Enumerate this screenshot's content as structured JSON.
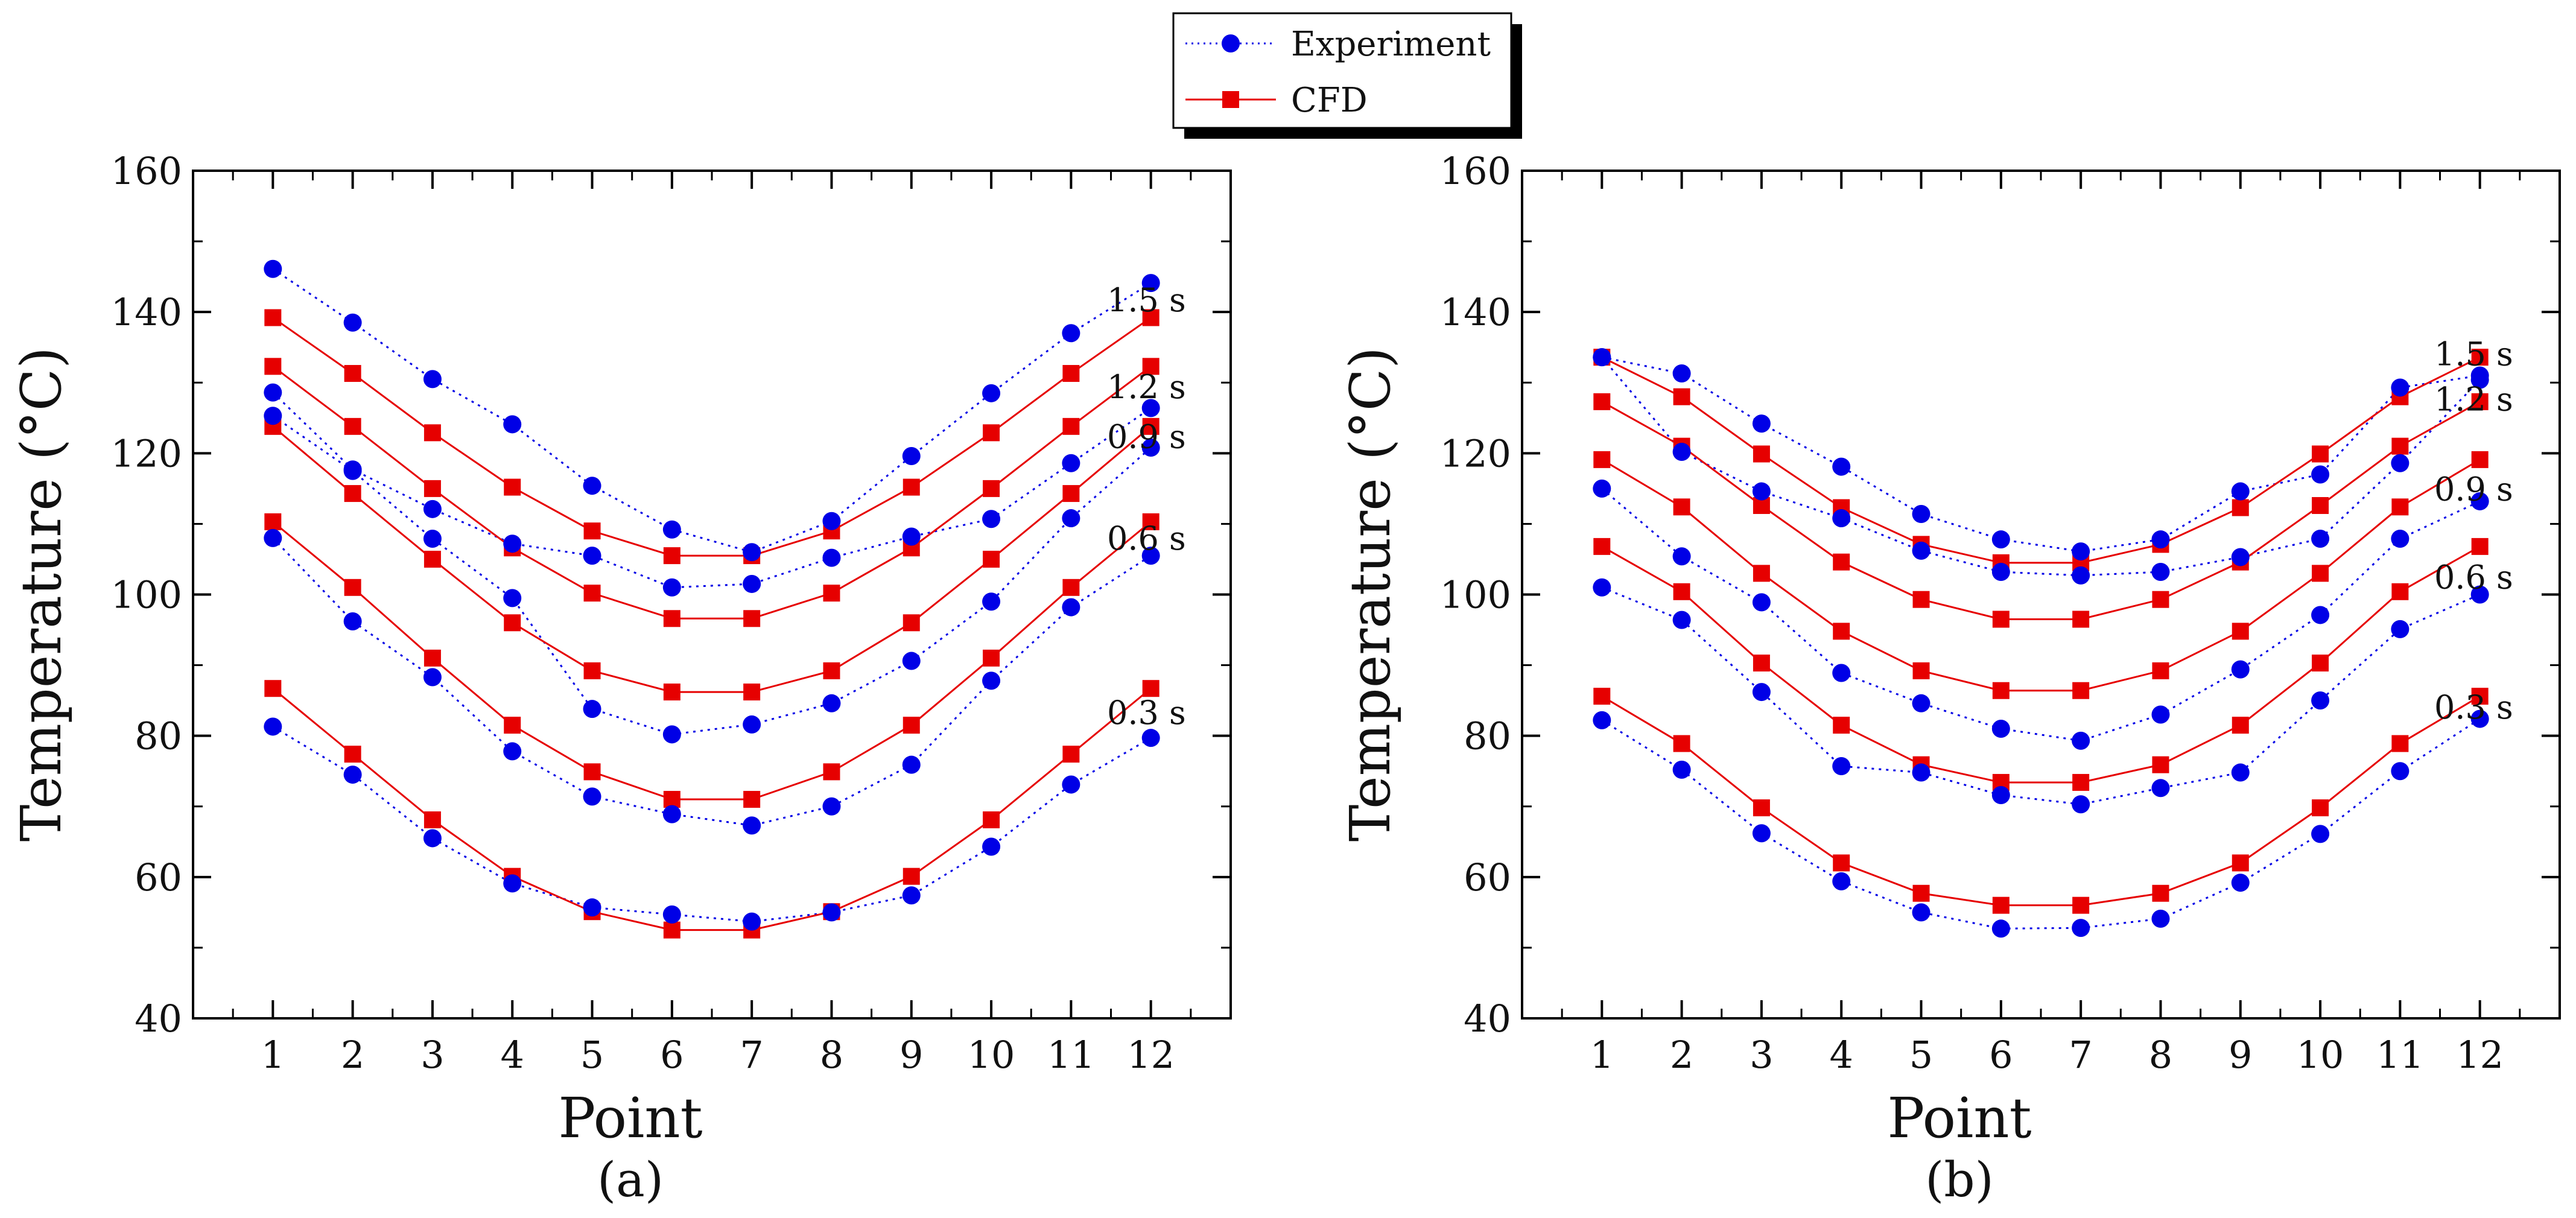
{
  "legend": {
    "items": [
      {
        "label": "Experiment",
        "color": "#0000e6",
        "marker": "circle",
        "line": "dotted"
      },
      {
        "label": "CFD",
        "color": "#e60000",
        "marker": "square",
        "line": "solid"
      }
    ]
  },
  "chart_data": [
    {
      "panel_label": "(a)",
      "type": "line",
      "xlabel": "Point",
      "ylabel": "Temperature (°C)",
      "xlim": [
        0,
        13
      ],
      "ylim": [
        40,
        160
      ],
      "x": [
        1,
        2,
        3,
        4,
        5,
        6,
        7,
        8,
        9,
        10,
        11,
        12
      ],
      "xticks": [
        "1",
        "2",
        "3",
        "4",
        "5",
        "6",
        "7",
        "8",
        "9",
        "10",
        "11",
        "12"
      ],
      "yticks": [
        "40",
        "60",
        "80",
        "100",
        "120",
        "140",
        "160"
      ],
      "groups": [
        {
          "label": "1.5 s",
          "experiment": [
            146.1,
            138.5,
            130.5,
            124.1,
            115.4,
            109.2,
            106.0,
            110.4,
            119.6,
            128.5,
            137.0,
            144.1
          ],
          "cfd": [
            139.2,
            131.3,
            122.9,
            115.2,
            109.0,
            105.5,
            105.5,
            109.0,
            115.2,
            122.9,
            131.3,
            139.2
          ]
        },
        {
          "label": "1.2 s",
          "experiment": [
            128.6,
            117.7,
            112.1,
            107.2,
            105.5,
            101.0,
            101.5,
            105.2,
            108.2,
            110.7,
            118.6,
            126.4
          ],
          "cfd": [
            132.3,
            123.8,
            115.0,
            106.6,
            100.2,
            96.6,
            96.6,
            100.2,
            106.6,
            115.0,
            123.8,
            132.3
          ]
        },
        {
          "label": "0.9 s",
          "experiment": [
            125.3,
            117.5,
            107.9,
            99.5,
            83.8,
            80.2,
            81.6,
            84.6,
            90.6,
            99.0,
            110.8,
            120.8
          ],
          "cfd": [
            123.8,
            114.3,
            105.0,
            96.0,
            89.2,
            86.2,
            86.2,
            89.2,
            96.0,
            105.0,
            114.3,
            123.8
          ]
        },
        {
          "label": "0.6 s",
          "experiment": [
            108.0,
            96.2,
            88.3,
            77.8,
            71.4,
            68.9,
            67.3,
            70.0,
            75.9,
            87.8,
            98.2,
            105.5
          ],
          "cfd": [
            110.3,
            101.0,
            91.0,
            81.5,
            74.9,
            71.0,
            71.0,
            74.9,
            81.5,
            91.0,
            101.0,
            110.3
          ]
        },
        {
          "label": "0.3 s",
          "experiment": [
            81.3,
            74.5,
            65.5,
            59.1,
            55.7,
            54.7,
            53.7,
            55.0,
            57.4,
            64.3,
            73.1,
            79.7
          ],
          "cfd": [
            86.7,
            77.4,
            68.1,
            60.1,
            55.1,
            52.5,
            52.5,
            55.1,
            60.1,
            68.1,
            77.4,
            86.7
          ]
        }
      ]
    },
    {
      "panel_label": "(b)",
      "type": "line",
      "xlabel": "Point",
      "ylabel": "Temperature (°C)",
      "xlim": [
        0,
        13
      ],
      "ylim": [
        40,
        160
      ],
      "x": [
        1,
        2,
        3,
        4,
        5,
        6,
        7,
        8,
        9,
        10,
        11,
        12
      ],
      "xticks": [
        "1",
        "2",
        "3",
        "4",
        "5",
        "6",
        "7",
        "8",
        "9",
        "10",
        "11",
        "12"
      ],
      "yticks": [
        "40",
        "60",
        "80",
        "100",
        "120",
        "140",
        "160"
      ],
      "groups": [
        {
          "label": "1.5 s",
          "experiment": [
            133.6,
            131.3,
            124.2,
            118.1,
            111.4,
            107.8,
            106.1,
            107.8,
            114.6,
            117.0,
            129.3,
            131.0
          ],
          "cfd": [
            133.6,
            128.0,
            119.9,
            112.3,
            107.1,
            104.5,
            104.5,
            107.1,
            112.3,
            119.9,
            128.0,
            133.6
          ]
        },
        {
          "label": "1.2 s",
          "experiment": [
            133.6,
            120.2,
            114.6,
            110.8,
            106.2,
            103.2,
            102.7,
            103.2,
            105.3,
            107.9,
            118.6,
            130.4
          ],
          "cfd": [
            127.3,
            121.0,
            112.6,
            104.6,
            99.3,
            96.5,
            96.5,
            99.3,
            104.6,
            112.6,
            121.0,
            127.3
          ]
        },
        {
          "label": "0.9 s",
          "experiment": [
            115.0,
            105.4,
            98.9,
            88.9,
            84.6,
            81.0,
            79.3,
            83.0,
            89.4,
            97.1,
            107.9,
            113.2
          ],
          "cfd": [
            119.1,
            112.4,
            103.0,
            94.8,
            89.2,
            86.4,
            86.4,
            89.2,
            94.8,
            103.0,
            112.4,
            119.1
          ]
        },
        {
          "label": "0.6 s",
          "experiment": [
            101.0,
            96.4,
            86.2,
            75.7,
            74.8,
            71.6,
            70.3,
            72.6,
            74.8,
            85.0,
            95.1,
            100.0
          ],
          "cfd": [
            106.8,
            100.4,
            90.3,
            81.5,
            75.9,
            73.4,
            73.4,
            75.9,
            81.5,
            90.3,
            100.4,
            106.8
          ]
        },
        {
          "label": "0.3 s",
          "experiment": [
            82.2,
            75.2,
            66.2,
            59.4,
            55.0,
            52.7,
            52.8,
            54.1,
            59.2,
            66.1,
            75.0,
            82.4
          ],
          "cfd": [
            85.6,
            78.9,
            69.8,
            62.0,
            57.7,
            56.0,
            56.0,
            57.7,
            62.0,
            69.8,
            78.9,
            85.6
          ]
        }
      ]
    }
  ]
}
